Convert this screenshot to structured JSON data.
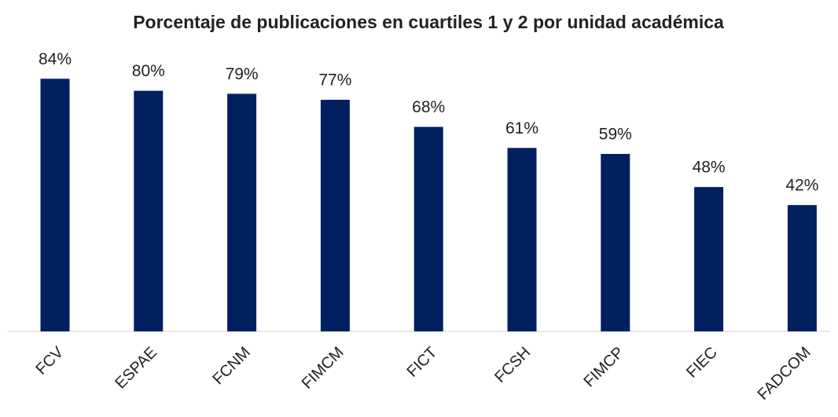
{
  "chart_data": {
    "type": "bar",
    "title": "Porcentaje de publicaciones en cuartiles 1 y 2 por unidad académica",
    "categories": [
      "FCV",
      "ESPAE",
      "FCNM",
      "FIMCM",
      "FICT",
      "FCSH",
      "FIMCP",
      "FIEC",
      "FADCOM"
    ],
    "values": [
      84,
      80,
      79,
      77,
      68,
      61,
      59,
      48,
      42
    ],
    "value_labels": [
      "84%",
      "80%",
      "79%",
      "77%",
      "68%",
      "61%",
      "59%",
      "48%",
      "42%"
    ],
    "color": "#002060"
  }
}
